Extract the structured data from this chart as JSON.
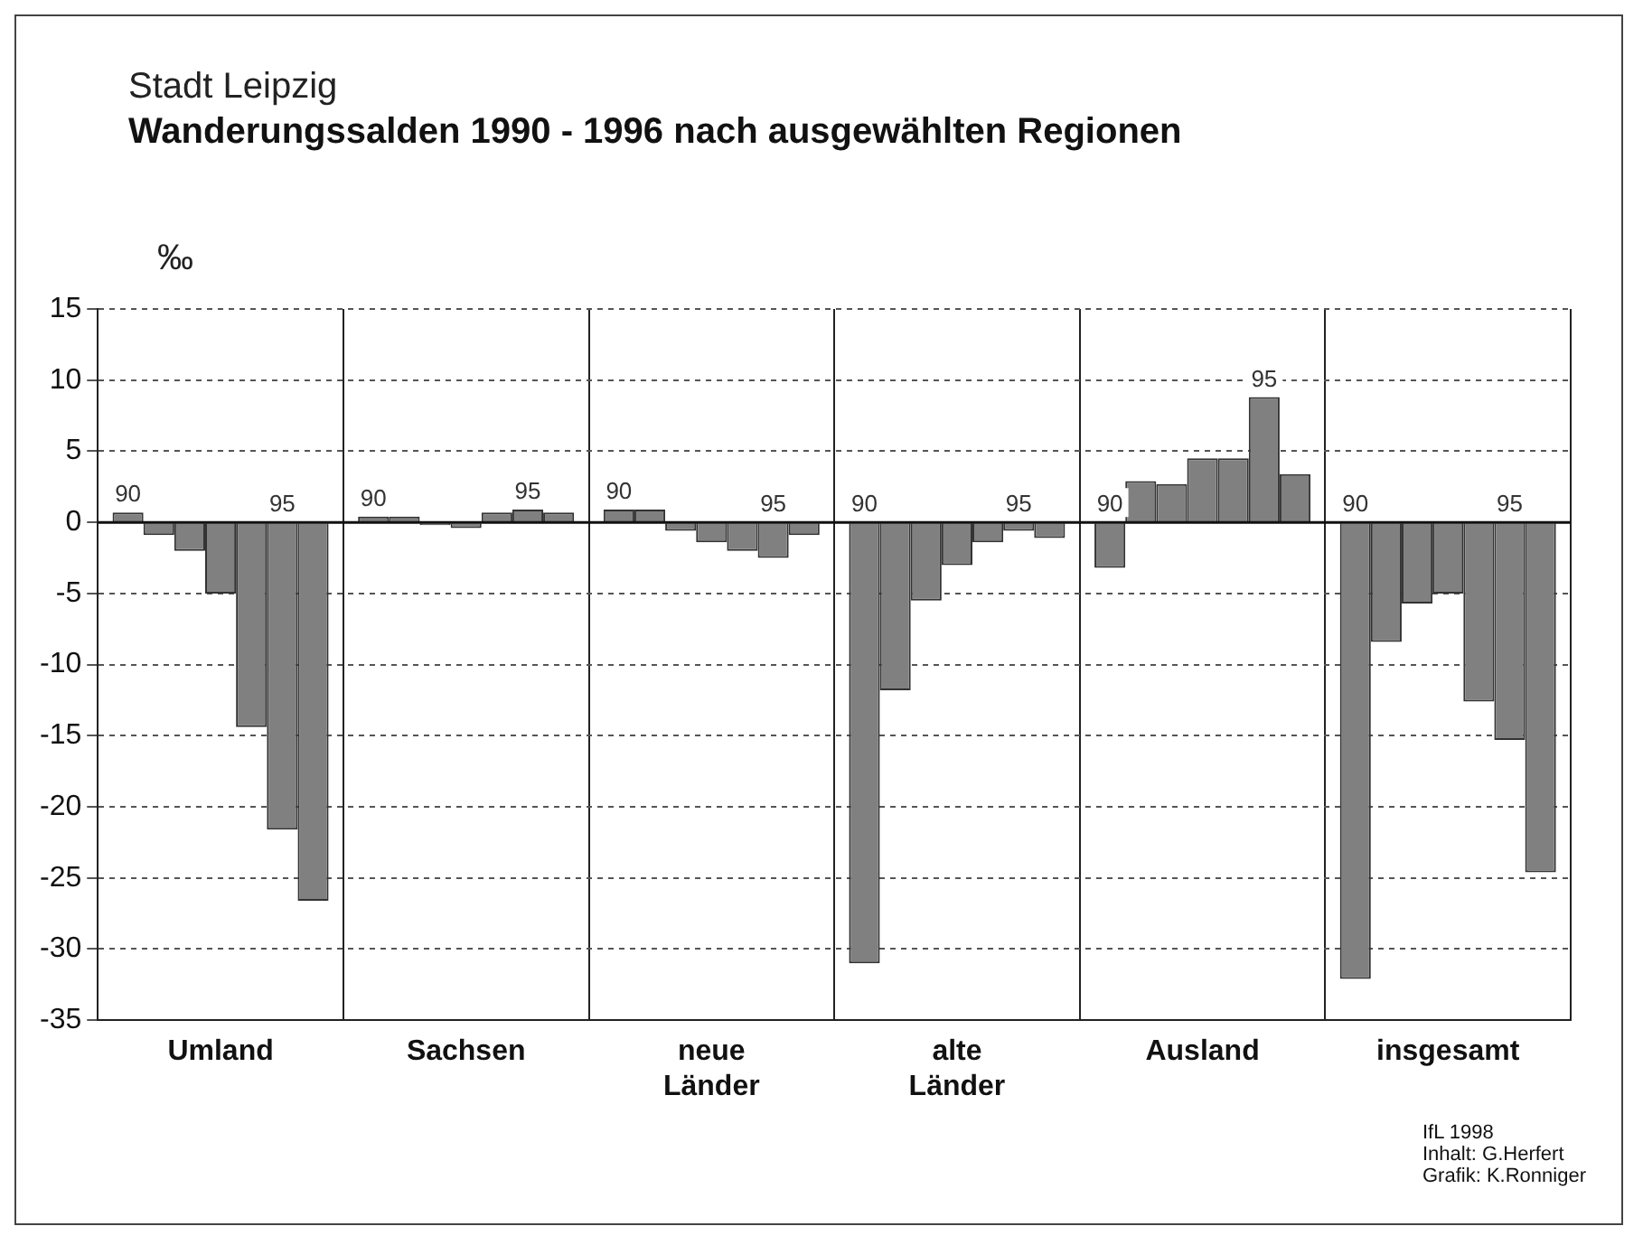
{
  "chart_data": {
    "type": "bar",
    "title": "Stadt Leipzig",
    "subtitle": "Wanderungssalden 1990 - 1996 nach ausgewählten Regionen",
    "ylabel": "‰",
    "categories": [
      "Umland",
      "Sachsen",
      "neue Länder",
      "alte Länder",
      "Ausland",
      "insgesamt"
    ],
    "series": [
      {
        "name": "90",
        "color": "#808080",
        "values": [
          0.7,
          0.4,
          0.9,
          -31,
          -3.2,
          -32.1
        ]
      },
      {
        "color": "#808080",
        "values": [
          -0.9,
          0.4,
          0.9,
          -11.8,
          2.9,
          -8.4
        ]
      },
      {
        "color": "#808080",
        "values": [
          -2,
          -0.2,
          -0.6,
          -5.5,
          2.7,
          -5.7
        ]
      },
      {
        "color": "#808080",
        "values": [
          -5,
          -0.4,
          -1.4,
          -3,
          4.5,
          -5
        ]
      },
      {
        "color": "#808080",
        "values": [
          -14.4,
          0.7,
          -2,
          -1.4,
          4.5,
          -12.6
        ]
      },
      {
        "name": "95",
        "color": "#808080",
        "values": [
          -21.6,
          0.9,
          -2.5,
          -0.6,
          8.8,
          -15.3
        ]
      },
      {
        "color": "#808080",
        "values": [
          -26.6,
          0.7,
          -0.9,
          -1.1,
          3.4,
          -24.6
        ]
      }
    ],
    "ylim": [
      -35,
      15
    ],
    "yticks": [
      -35,
      -30,
      -25,
      -20,
      -15,
      -10,
      -5,
      0,
      5,
      10,
      15
    ],
    "grid": true,
    "legend": false,
    "ref_lines": [
      {
        "axis": "y",
        "value": 0,
        "color": "#111111"
      }
    ],
    "annotations": [
      "IfL 1998",
      "Inhalt: G.Herfert",
      "Grafik: K.Ronniger"
    ]
  }
}
